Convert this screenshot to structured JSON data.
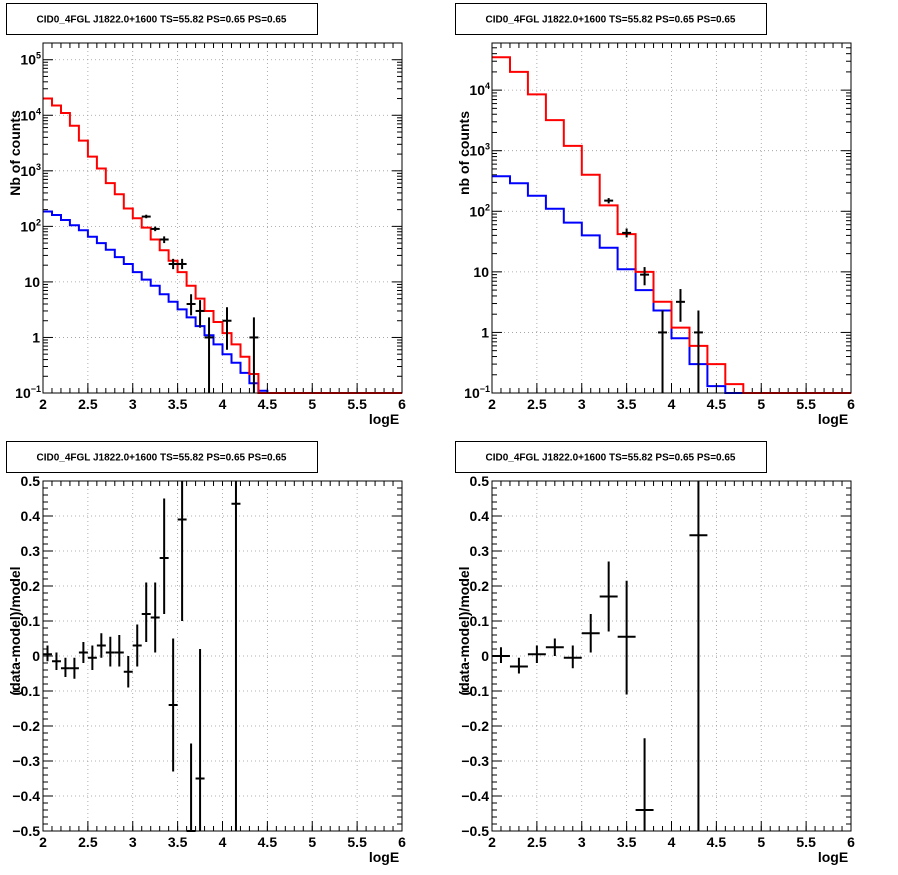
{
  "colors": {
    "data": "#000000",
    "model_total": "#ff0000",
    "model_component": "#0000ff",
    "grid": "#999999"
  },
  "chart_data": [
    {
      "type": "histogram",
      "title": "CID0_4FGL J1822.0+1600 TS=55.82 PS=0.65 PS=0.65",
      "xlabel": "logE",
      "ylabel": "Nb of counts",
      "xlim": [
        2,
        6
      ],
      "ylim": [
        0.1,
        200000
      ],
      "yscale": "log",
      "grid": true,
      "xticks": [
        {
          "v": 2,
          "t": "2"
        },
        {
          "v": 2.5,
          "t": "2.5"
        },
        {
          "v": 3,
          "t": "3"
        },
        {
          "v": 3.5,
          "t": "3.5"
        },
        {
          "v": 4,
          "t": "4"
        },
        {
          "v": 4.5,
          "t": "4.5"
        },
        {
          "v": 5,
          "t": "5"
        },
        {
          "v": 5.5,
          "t": "5.5"
        },
        {
          "v": 6,
          "t": "6"
        }
      ],
      "yticks": [
        {
          "v": 0.1,
          "t": "10",
          "sup": "−1"
        },
        {
          "v": 1,
          "t": "1"
        },
        {
          "v": 10,
          "t": "10"
        },
        {
          "v": 100,
          "t": "10",
          "sup": "2"
        },
        {
          "v": 1000,
          "t": "10",
          "sup": "3"
        },
        {
          "v": 10000,
          "t": "10",
          "sup": "4"
        },
        {
          "v": 100000,
          "t": "10",
          "sup": "5"
        }
      ],
      "series": [
        {
          "kind": "step",
          "color_key": "model_component",
          "edges": [
            2.0,
            2.1,
            2.2,
            2.3,
            2.4,
            2.5,
            2.6,
            2.7,
            2.8,
            2.9,
            3.0,
            3.1,
            3.2,
            3.3,
            3.4,
            3.5,
            3.6,
            3.7,
            3.8,
            3.9,
            4.0,
            4.1,
            4.2,
            4.3,
            4.4,
            4.5,
            4.6,
            4.7,
            4.8,
            4.9,
            5.0,
            5.1,
            5.2,
            5.3,
            5.4,
            5.5,
            5.6,
            5.7,
            5.8,
            5.9,
            6.0
          ],
          "values": [
            185,
            160,
            130,
            105,
            85,
            65,
            50,
            38,
            28,
            21,
            15,
            11,
            8.5,
            6,
            4.4,
            3.2,
            2.3,
            1.6,
            1.1,
            0.75,
            0.5,
            0.35,
            0.23,
            0.15,
            0.11,
            0.1,
            0.1,
            0.1,
            0.1,
            0.1,
            0.1,
            0.1,
            0.1,
            0.1,
            0.1,
            0.1,
            0.1,
            0.1,
            0.1,
            0.1
          ]
        },
        {
          "kind": "step",
          "color_key": "model_total",
          "edges": [
            2.0,
            2.1,
            2.2,
            2.3,
            2.4,
            2.5,
            2.6,
            2.7,
            2.8,
            2.9,
            3.0,
            3.1,
            3.2,
            3.3,
            3.4,
            3.5,
            3.6,
            3.7,
            3.8,
            3.9,
            4.0,
            4.1,
            4.2,
            4.3,
            4.4,
            4.5,
            4.6,
            4.7,
            4.8,
            4.9,
            5.0,
            5.1,
            5.2,
            5.3,
            5.4,
            5.5,
            5.6,
            5.7,
            5.8,
            5.9,
            6.0
          ],
          "values": [
            20000,
            15000,
            11000,
            6500,
            3500,
            1800,
            1100,
            600,
            380,
            210,
            140,
            95,
            58,
            37,
            24,
            15,
            8.5,
            5,
            3,
            1.9,
            1.2,
            0.75,
            0.45,
            0.22,
            0.1,
            0.1,
            0.1,
            0.1,
            0.1,
            0.1,
            0.1,
            0.1,
            0.1,
            0.1,
            0.1,
            0.1,
            0.1,
            0.1,
            0.1,
            0.1
          ]
        },
        {
          "kind": "errorbar",
          "color_key": "data",
          "points": [
            {
              "x": 3.15,
              "y": 150,
              "lo": 140,
              "hi": 162
            },
            {
              "x": 3.25,
              "y": 90,
              "lo": 82,
              "hi": 99
            },
            {
              "x": 3.35,
              "y": 58,
              "lo": 50,
              "hi": 66
            },
            {
              "x": 3.45,
              "y": 21,
              "lo": 17,
              "hi": 26
            },
            {
              "x": 3.55,
              "y": 21,
              "lo": 17,
              "hi": 26
            },
            {
              "x": 3.65,
              "y": 4.0,
              "lo": 2.5,
              "hi": 6
            },
            {
              "x": 3.75,
              "y": 3.0,
              "lo": 1.5,
              "hi": 4.7
            },
            {
              "x": 3.85,
              "y": 1.0,
              "lo": 0.1,
              "hi": 2.3
            },
            {
              "x": 4.05,
              "y": 2.0,
              "lo": 0.6,
              "hi": 3.5
            },
            {
              "x": 4.35,
              "y": 1.0,
              "lo": 0.1,
              "hi": 2.3
            }
          ]
        }
      ]
    },
    {
      "type": "histogram",
      "title": "CID0_4FGL J1822.0+1600 TS=55.82 PS=0.65 PS=0.65",
      "xlabel": "logE",
      "ylabel": "nb of counts",
      "xlim": [
        2,
        6
      ],
      "ylim": [
        0.1,
        60000
      ],
      "yscale": "log",
      "grid": true,
      "xticks": [
        {
          "v": 2,
          "t": "2"
        },
        {
          "v": 2.5,
          "t": "2.5"
        },
        {
          "v": 3,
          "t": "3"
        },
        {
          "v": 3.5,
          "t": "3.5"
        },
        {
          "v": 4,
          "t": "4"
        },
        {
          "v": 4.5,
          "t": "4.5"
        },
        {
          "v": 5,
          "t": "5"
        },
        {
          "v": 5.5,
          "t": "5.5"
        },
        {
          "v": 6,
          "t": "6"
        }
      ],
      "yticks": [
        {
          "v": 0.1,
          "t": "10",
          "sup": "−1"
        },
        {
          "v": 1,
          "t": "1"
        },
        {
          "v": 10,
          "t": "10"
        },
        {
          "v": 100,
          "t": "10",
          "sup": "2"
        },
        {
          "v": 1000,
          "t": "10",
          "sup": "3"
        },
        {
          "v": 10000,
          "t": "10",
          "sup": "4"
        }
      ],
      "series": [
        {
          "kind": "step",
          "color_key": "model_component",
          "edges": [
            2.0,
            2.2,
            2.4,
            2.6,
            2.8,
            3.0,
            3.2,
            3.4,
            3.6,
            3.8,
            4.0,
            4.2,
            4.4,
            4.6,
            4.8,
            5.0,
            5.2,
            5.4,
            5.6,
            5.8,
            6.0
          ],
          "values": [
            380,
            290,
            180,
            110,
            65,
            40,
            25,
            11,
            5,
            2.3,
            0.8,
            0.3,
            0.13,
            0.1,
            0.1,
            0.1,
            0.1,
            0.1,
            0.1,
            0.1
          ]
        },
        {
          "kind": "step",
          "color_key": "model_total",
          "edges": [
            2.0,
            2.2,
            2.4,
            2.6,
            2.8,
            3.0,
            3.2,
            3.4,
            3.6,
            3.8,
            4.0,
            4.2,
            4.4,
            4.6,
            4.8,
            5.0,
            5.2,
            5.4,
            5.6,
            5.8,
            6.0
          ],
          "values": [
            35000,
            20000,
            8500,
            3200,
            1200,
            400,
            125,
            42,
            10,
            3.2,
            1.2,
            0.6,
            0.3,
            0.14,
            0.1,
            0.1,
            0.1,
            0.1,
            0.1,
            0.1
          ]
        },
        {
          "kind": "errorbar",
          "color_key": "data",
          "points": [
            {
              "x": 3.3,
              "y": 150,
              "lo": 135,
              "hi": 165
            },
            {
              "x": 3.5,
              "y": 44,
              "lo": 37,
              "hi": 52
            },
            {
              "x": 3.7,
              "y": 9,
              "lo": 6,
              "hi": 12
            },
            {
              "x": 3.9,
              "y": 1.0,
              "lo": 0.1,
              "hi": 2.3
            },
            {
              "x": 4.1,
              "y": 3.2,
              "lo": 1.5,
              "hi": 5.2
            },
            {
              "x": 4.3,
              "y": 1.0,
              "lo": 0.1,
              "hi": 2.3
            }
          ]
        }
      ]
    },
    {
      "type": "scatter",
      "title": "CID0_4FGL J1822.0+1600 TS=55.82 PS=0.65 PS=0.65",
      "xlabel": "logE",
      "ylabel": "(data-model)/model",
      "xlim": [
        2,
        6
      ],
      "ylim": [
        -0.5,
        0.5
      ],
      "yscale": "linear",
      "grid": true,
      "xticks": [
        {
          "v": 2,
          "t": "2"
        },
        {
          "v": 2.5,
          "t": "2.5"
        },
        {
          "v": 3,
          "t": "3"
        },
        {
          "v": 3.5,
          "t": "3.5"
        },
        {
          "v": 4,
          "t": "4"
        },
        {
          "v": 4.5,
          "t": "4.5"
        },
        {
          "v": 5,
          "t": "5"
        },
        {
          "v": 5.5,
          "t": "5.5"
        },
        {
          "v": 6,
          "t": "6"
        }
      ],
      "yticks": [
        {
          "v": -0.5,
          "t": "−0.5"
        },
        {
          "v": -0.4,
          "t": "−0.4"
        },
        {
          "v": -0.3,
          "t": "−0.3"
        },
        {
          "v": -0.2,
          "t": "−0.2"
        },
        {
          "v": -0.1,
          "t": "−0.1"
        },
        {
          "v": 0,
          "t": "0"
        },
        {
          "v": 0.1,
          "t": "0.1"
        },
        {
          "v": 0.2,
          "t": "0.2"
        },
        {
          "v": 0.3,
          "t": "0.3"
        },
        {
          "v": 0.4,
          "t": "0.4"
        },
        {
          "v": 0.5,
          "t": "0.5"
        }
      ],
      "series": [
        {
          "kind": "errorbar",
          "color_key": "data",
          "xerr": 0.05,
          "points": [
            {
              "x": 2.05,
              "y": 0.005,
              "lo": -0.015,
              "hi": 0.03
            },
            {
              "x": 2.15,
              "y": -0.015,
              "lo": -0.04,
              "hi": 0.01
            },
            {
              "x": 2.25,
              "y": -0.035,
              "lo": -0.06,
              "hi": -0.005
            },
            {
              "x": 2.35,
              "y": -0.035,
              "lo": -0.065,
              "hi": -0.005
            },
            {
              "x": 2.45,
              "y": 0.01,
              "lo": -0.02,
              "hi": 0.04
            },
            {
              "x": 2.55,
              "y": -0.005,
              "lo": -0.04,
              "hi": 0.03
            },
            {
              "x": 2.65,
              "y": 0.03,
              "lo": -0.005,
              "hi": 0.065
            },
            {
              "x": 2.75,
              "y": 0.01,
              "lo": -0.03,
              "hi": 0.055
            },
            {
              "x": 2.85,
              "y": 0.01,
              "lo": -0.03,
              "hi": 0.06
            },
            {
              "x": 2.95,
              "y": -0.045,
              "lo": -0.09,
              "hi": 0.0
            },
            {
              "x": 3.05,
              "y": 0.03,
              "lo": -0.03,
              "hi": 0.09
            },
            {
              "x": 3.15,
              "y": 0.12,
              "lo": 0.04,
              "hi": 0.21
            },
            {
              "x": 3.25,
              "y": 0.11,
              "lo": 0.01,
              "hi": 0.21
            },
            {
              "x": 3.35,
              "y": 0.28,
              "lo": 0.12,
              "hi": 0.45
            },
            {
              "x": 3.45,
              "y": -0.14,
              "lo": -0.33,
              "hi": 0.05
            },
            {
              "x": 3.55,
              "y": 0.39,
              "lo": 0.1,
              "hi": 0.5
            },
            {
              "x": 3.65,
              "y": -0.5,
              "lo": -0.5,
              "hi": -0.25
            },
            {
              "x": 3.75,
              "y": -0.35,
              "lo": -0.5,
              "hi": 0.02
            },
            {
              "x": 4.15,
              "y": 0.435,
              "lo": -0.5,
              "hi": 0.5
            }
          ]
        }
      ]
    },
    {
      "type": "scatter",
      "title": "CID0_4FGL J1822.0+1600 TS=55.82 PS=0.65 PS=0.65",
      "xlabel": "logE",
      "ylabel": "(data-model)/model",
      "xlim": [
        2,
        6
      ],
      "ylim": [
        -0.5,
        0.5
      ],
      "yscale": "linear",
      "grid": true,
      "xticks": [
        {
          "v": 2,
          "t": "2"
        },
        {
          "v": 2.5,
          "t": "2.5"
        },
        {
          "v": 3,
          "t": "3"
        },
        {
          "v": 3.5,
          "t": "3.5"
        },
        {
          "v": 4,
          "t": "4"
        },
        {
          "v": 4.5,
          "t": "4.5"
        },
        {
          "v": 5,
          "t": "5"
        },
        {
          "v": 5.5,
          "t": "5.5"
        },
        {
          "v": 6,
          "t": "6"
        }
      ],
      "yticks": [
        {
          "v": -0.5,
          "t": "−0.5"
        },
        {
          "v": -0.4,
          "t": "−0.4"
        },
        {
          "v": -0.3,
          "t": "−0.3"
        },
        {
          "v": -0.2,
          "t": "−0.2"
        },
        {
          "v": -0.1,
          "t": "−0.1"
        },
        {
          "v": 0,
          "t": "0"
        },
        {
          "v": 0.1,
          "t": "0.1"
        },
        {
          "v": 0.2,
          "t": "0.2"
        },
        {
          "v": 0.3,
          "t": "0.3"
        },
        {
          "v": 0.4,
          "t": "0.4"
        },
        {
          "v": 0.5,
          "t": "0.5"
        }
      ],
      "series": [
        {
          "kind": "errorbar",
          "color_key": "data",
          "xerr": 0.1,
          "points": [
            {
              "x": 2.1,
              "y": 0.0,
              "lo": -0.02,
              "hi": 0.025
            },
            {
              "x": 2.3,
              "y": -0.03,
              "lo": -0.05,
              "hi": -0.005
            },
            {
              "x": 2.5,
              "y": 0.005,
              "lo": -0.02,
              "hi": 0.03
            },
            {
              "x": 2.7,
              "y": 0.025,
              "lo": 0.0,
              "hi": 0.05
            },
            {
              "x": 2.9,
              "y": -0.005,
              "lo": -0.035,
              "hi": 0.03
            },
            {
              "x": 3.1,
              "y": 0.065,
              "lo": 0.01,
              "hi": 0.12
            },
            {
              "x": 3.3,
              "y": 0.17,
              "lo": 0.07,
              "hi": 0.27
            },
            {
              "x": 3.5,
              "y": 0.055,
              "lo": -0.11,
              "hi": 0.215
            },
            {
              "x": 3.7,
              "y": -0.44,
              "lo": -0.5,
              "hi": -0.235
            },
            {
              "x": 4.3,
              "y": 0.345,
              "lo": -0.5,
              "hi": 0.5
            }
          ]
        }
      ]
    }
  ]
}
